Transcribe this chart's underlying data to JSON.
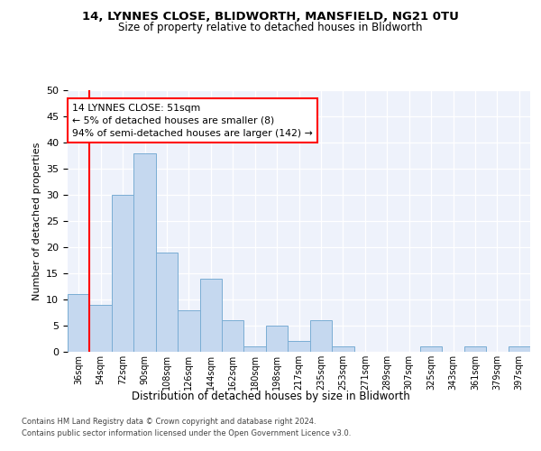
{
  "title1": "14, LYNNES CLOSE, BLIDWORTH, MANSFIELD, NG21 0TU",
  "title2": "Size of property relative to detached houses in Blidworth",
  "xlabel": "Distribution of detached houses by size in Blidworth",
  "ylabel": "Number of detached properties",
  "categories": [
    "36sqm",
    "54sqm",
    "72sqm",
    "90sqm",
    "108sqm",
    "126sqm",
    "144sqm",
    "162sqm",
    "180sqm",
    "198sqm",
    "217sqm",
    "235sqm",
    "253sqm",
    "271sqm",
    "289sqm",
    "307sqm",
    "325sqm",
    "343sqm",
    "361sqm",
    "379sqm",
    "397sqm"
  ],
  "values": [
    11,
    9,
    30,
    38,
    19,
    8,
    14,
    6,
    1,
    5,
    2,
    6,
    1,
    0,
    0,
    0,
    1,
    0,
    1,
    0,
    1
  ],
  "bar_color": "#c5d8ef",
  "bar_edge_color": "#7aadd4",
  "red_line_index": 1,
  "annotation_title": "14 LYNNES CLOSE: 51sqm",
  "annotation_line1": "← 5% of detached houses are smaller (8)",
  "annotation_line2": "94% of semi-detached houses are larger (142) →",
  "ylim": [
    0,
    50
  ],
  "yticks": [
    0,
    5,
    10,
    15,
    20,
    25,
    30,
    35,
    40,
    45,
    50
  ],
  "footer1": "Contains HM Land Registry data © Crown copyright and database right 2024.",
  "footer2": "Contains public sector information licensed under the Open Government Licence v3.0.",
  "plot_bg_color": "#eef2fb"
}
